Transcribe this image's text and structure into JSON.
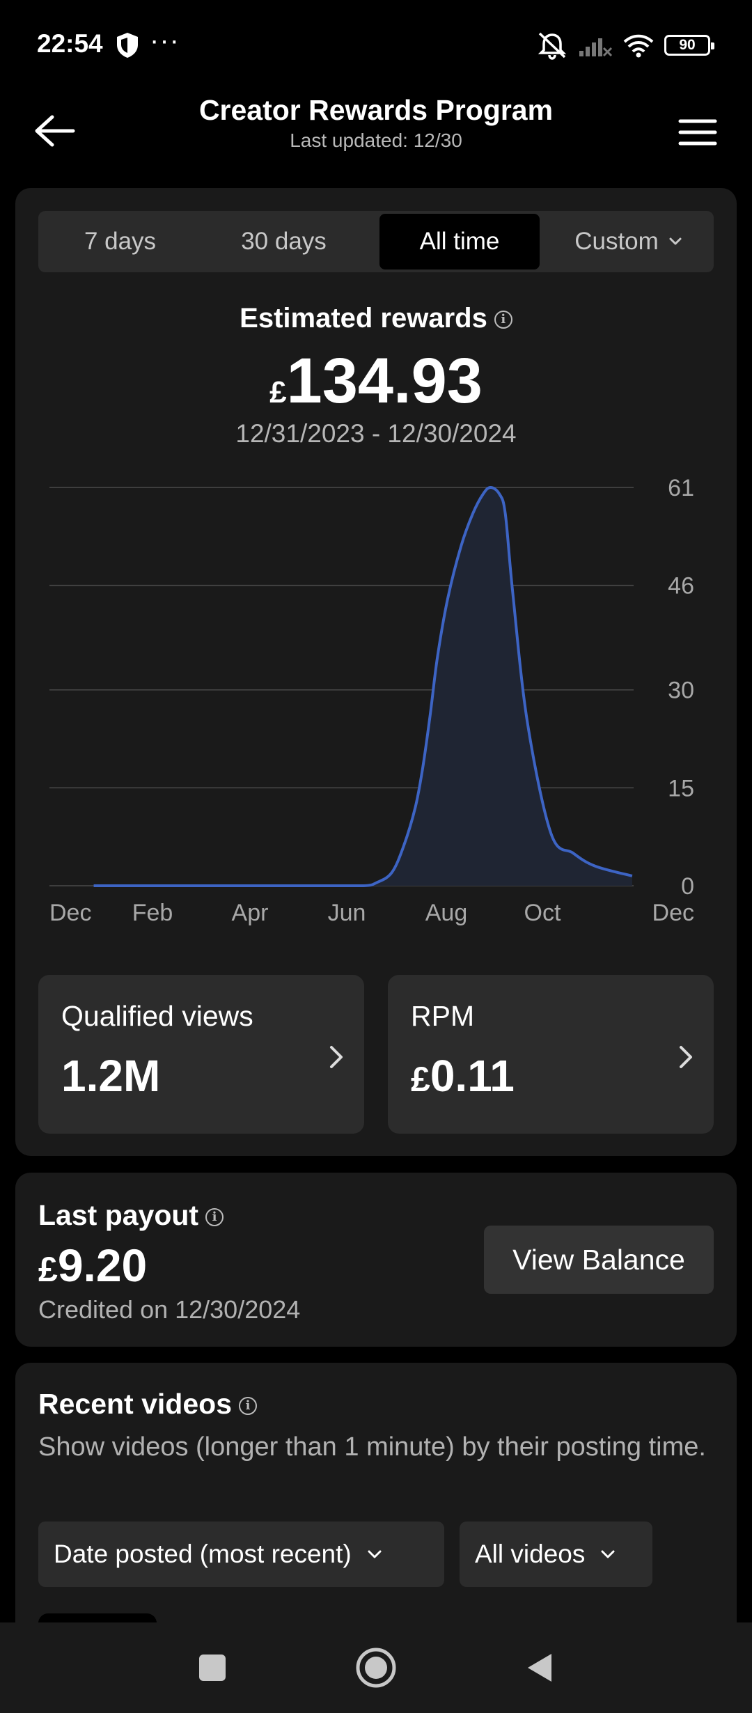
{
  "status_bar": {
    "time": "22:54",
    "battery": "90"
  },
  "header": {
    "title": "Creator Rewards Program",
    "subtitle": "Last updated: 12/30"
  },
  "tabs": [
    {
      "label": "7 days",
      "active": false
    },
    {
      "label": "30 days",
      "active": false
    },
    {
      "label": "All time",
      "active": true
    },
    {
      "label": "Custom",
      "active": false
    }
  ],
  "summary": {
    "label": "Estimated rewards",
    "currency": "£",
    "amount": "134.93",
    "date_range": "12/31/2023 - 12/30/2024"
  },
  "chart_data": {
    "type": "area",
    "x_ticks": [
      "Dec",
      "Feb",
      "Apr",
      "Jun",
      "Aug",
      "Oct",
      "Dec"
    ],
    "y_ticks": [
      0,
      15,
      30,
      46,
      61
    ],
    "ylim": [
      0,
      61
    ],
    "grid": true,
    "line_color": "#3d64c4",
    "series": [
      {
        "x": [
          "2023-12-31",
          "2024-02-01",
          "2024-04-01",
          "2024-06-01",
          "2024-07-01",
          "2024-07-10",
          "2024-07-20",
          "2024-07-28",
          "2024-08-05",
          "2024-08-10",
          "2024-08-15",
          "2024-08-20",
          "2024-08-27",
          "2024-09-05",
          "2024-09-13",
          "2024-09-20",
          "2024-09-25",
          "2024-10-01",
          "2024-10-05",
          "2024-10-10",
          "2024-10-20",
          "2024-11-05",
          "2024-11-20",
          "2024-12-05",
          "2024-12-30"
        ],
        "y": [
          0,
          0,
          0,
          0,
          0,
          0.5,
          2,
          6,
          12,
          18,
          26,
          35,
          44,
          52,
          57,
          60,
          61,
          60,
          57,
          45,
          25,
          8,
          5,
          3,
          1.5
        ]
      }
    ]
  },
  "stats": [
    {
      "label": "Qualified views",
      "value": "1.2M"
    },
    {
      "label": "RPM",
      "value": "0.11",
      "currency": "£"
    }
  ],
  "payout": {
    "title": "Last payout",
    "currency": "£",
    "amount": "9.20",
    "credited": "Credited on 12/30/2024",
    "button": "View Balance"
  },
  "recent": {
    "title": "Recent videos",
    "description": "Show videos (longer than 1 minute) by their posting time.",
    "filters": [
      "Date posted (most recent)",
      "All videos"
    ]
  }
}
